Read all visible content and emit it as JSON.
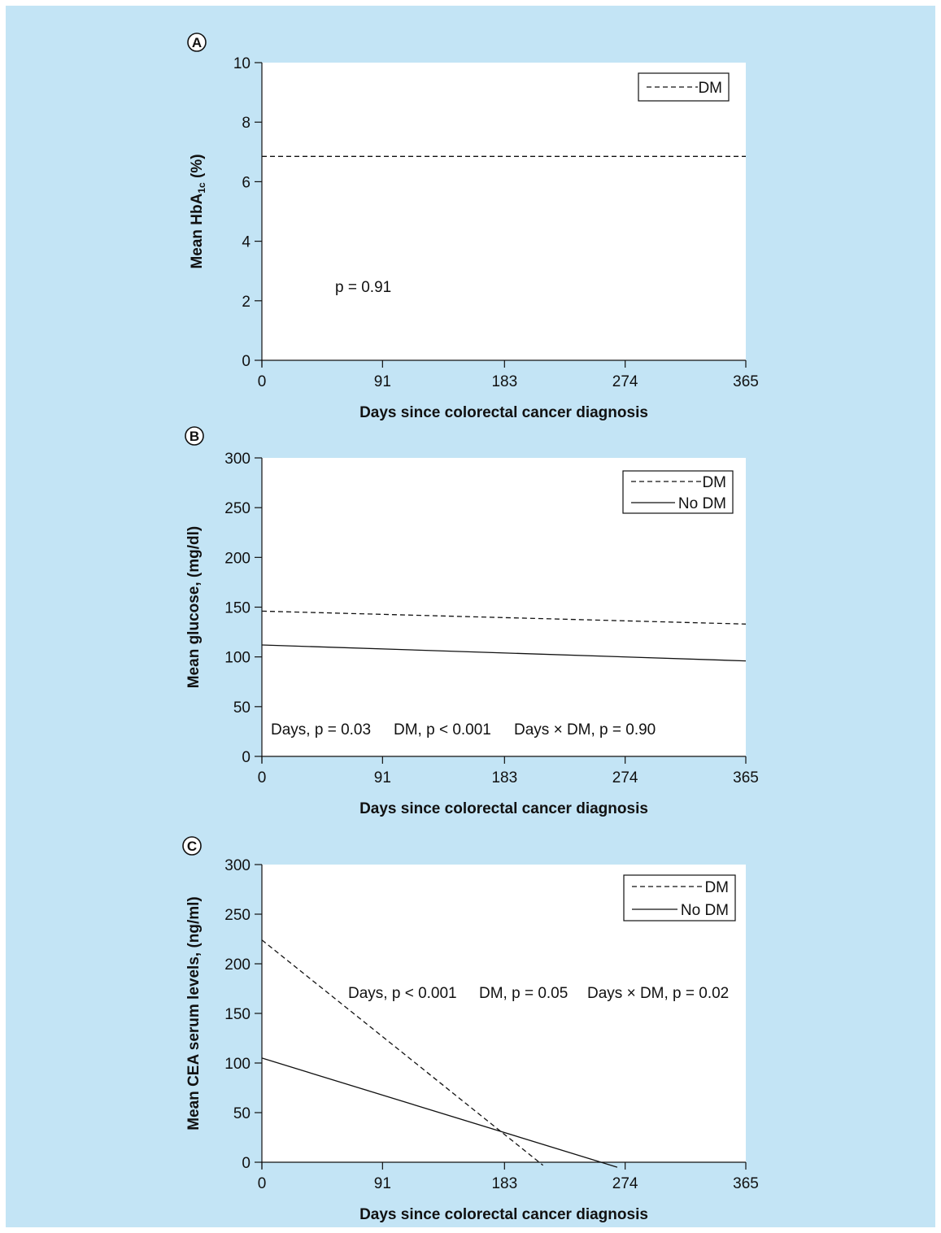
{
  "colors": {
    "background": "#c3e4f5",
    "plot_bg": "#ffffff",
    "line": "#111111"
  },
  "chart_data": [
    {
      "type": "line",
      "panel_label": "A",
      "xlabel": "Days since colorectal cancer diagnosis",
      "ylabel": {
        "main": "Mean HbA",
        "sub": "1c",
        "suffix": " (%)"
      },
      "x_ticks": [
        0,
        91,
        183,
        274,
        365
      ],
      "y_ticks": [
        0,
        2,
        4,
        6,
        8,
        10
      ],
      "xlim": [
        0,
        365
      ],
      "ylim": [
        0,
        10
      ],
      "legend_position": "top-right",
      "series": [
        {
          "name": "DM",
          "style": "dashed",
          "points": [
            [
              0,
              6.85
            ],
            [
              365,
              6.85
            ]
          ]
        }
      ],
      "annotations": [
        "p = 0.91"
      ]
    },
    {
      "type": "line",
      "panel_label": "B",
      "xlabel": "Days since colorectal cancer diagnosis",
      "ylabel": {
        "main": "Mean glucose, (mg/dl)"
      },
      "x_ticks": [
        0,
        91,
        183,
        274,
        365
      ],
      "y_ticks": [
        0,
        50,
        100,
        150,
        200,
        250,
        300
      ],
      "xlim": [
        0,
        365
      ],
      "ylim": [
        0,
        300
      ],
      "legend_position": "top-right",
      "series": [
        {
          "name": "DM",
          "style": "dashed",
          "points": [
            [
              0,
              146
            ],
            [
              365,
              133
            ]
          ]
        },
        {
          "name": "No DM",
          "style": "solid",
          "points": [
            [
              0,
              112
            ],
            [
              365,
              96
            ]
          ]
        }
      ],
      "annotations": [
        "Days, p = 0.03",
        "DM, p < 0.001",
        "Days × DM, p = 0.90"
      ]
    },
    {
      "type": "line",
      "panel_label": "C",
      "xlabel": "Days since colorectal cancer diagnosis",
      "ylabel": {
        "main": "Mean CEA serum levels, (ng/ml)"
      },
      "x_ticks": [
        0,
        91,
        183,
        274,
        365
      ],
      "y_ticks": [
        0,
        50,
        100,
        150,
        200,
        250,
        300
      ],
      "xlim": [
        0,
        365
      ],
      "ylim": [
        0,
        300
      ],
      "legend_position": "top-right",
      "series": [
        {
          "name": "DM",
          "style": "dashed",
          "points": [
            [
              0,
              224
            ],
            [
              212,
              -3
            ]
          ]
        },
        {
          "name": "No DM",
          "style": "solid",
          "points": [
            [
              0,
              105
            ],
            [
              268,
              -5
            ]
          ]
        }
      ],
      "annotations": [
        "Days, p < 0.001",
        "DM, p = 0.05",
        "Days × DM, p = 0.02"
      ]
    }
  ]
}
